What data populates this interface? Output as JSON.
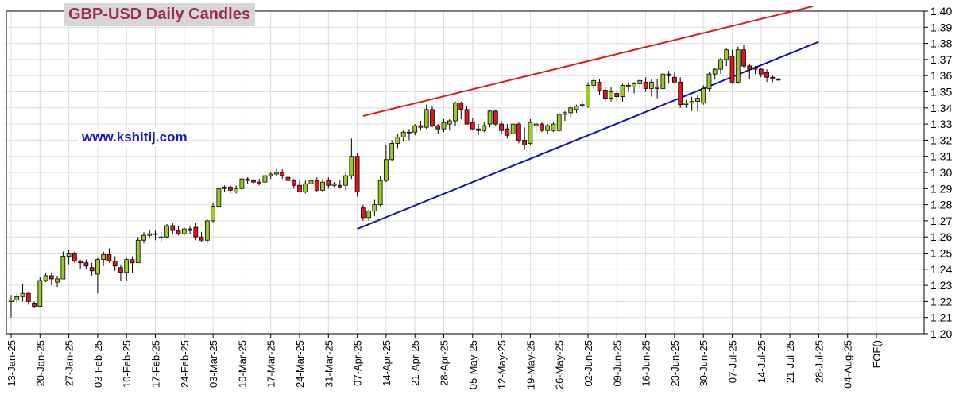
{
  "chart_data": {
    "type": "candlestick",
    "title": "GBP-USD Daily Candles",
    "watermark": "www.kshitij.com",
    "ylim": [
      1.2,
      1.4
    ],
    "y_ticks": [
      "1.20",
      "1.21",
      "1.22",
      "1.23",
      "1.24",
      "1.25",
      "1.26",
      "1.27",
      "1.28",
      "1.29",
      "1.30",
      "1.31",
      "1.32",
      "1.33",
      "1.34",
      "1.35",
      "1.36",
      "1.37",
      "1.38",
      "1.39",
      "1.40"
    ],
    "x_ticks": [
      "13-Jan-25",
      "20-Jan-25",
      "27-Jan-25",
      "03-Feb-25",
      "10-Feb-25",
      "17-Feb-25",
      "24-Feb-25",
      "03-Mar-25",
      "10-Mar-25",
      "17-Mar-25",
      "24-Mar-25",
      "31-Mar-25",
      "07-Apr-25",
      "14-Apr-25",
      "21-Apr-25",
      "28-Apr-25",
      "05-May-25",
      "12-May-25",
      "19-May-25",
      "26-May-25",
      "02-Jun-25",
      "09-Jun-25",
      "16-Jun-25",
      "23-Jun-25",
      "30-Jun-25",
      "07-Jul-25",
      "14-Jul-25",
      "21-Jul-25",
      "28-Jul-25",
      "04-Aug-25",
      "EOF()"
    ],
    "grid": true,
    "colors": {
      "up": "#99cc22",
      "down": "#e8141c",
      "resistance": "#e01818",
      "support": "#1212b8"
    },
    "candles": [
      [
        1.22,
        1.224,
        1.21,
        1.221
      ],
      [
        1.221,
        1.225,
        1.219,
        1.223
      ],
      [
        1.223,
        1.231,
        1.22,
        1.225
      ],
      [
        1.225,
        1.226,
        1.218,
        1.22
      ],
      [
        1.219,
        1.22,
        1.216,
        1.217
      ],
      [
        1.217,
        1.235,
        1.217,
        1.233
      ],
      [
        1.233,
        1.238,
        1.232,
        1.236
      ],
      [
        1.236,
        1.238,
        1.23,
        1.234
      ],
      [
        1.232,
        1.236,
        1.229,
        1.234
      ],
      [
        1.234,
        1.251,
        1.234,
        1.248
      ],
      [
        1.248,
        1.252,
        1.243,
        1.25
      ],
      [
        1.25,
        1.251,
        1.244,
        1.245
      ],
      [
        1.245,
        1.246,
        1.24,
        1.244
      ],
      [
        1.244,
        1.246,
        1.24,
        1.242
      ],
      [
        1.241,
        1.244,
        1.236,
        1.239
      ],
      [
        1.237,
        1.247,
        1.225,
        1.246
      ],
      [
        1.246,
        1.251,
        1.242,
        1.249
      ],
      [
        1.249,
        1.253,
        1.244,
        1.245
      ],
      [
        1.245,
        1.248,
        1.239,
        1.242
      ],
      [
        1.241,
        1.243,
        1.233,
        1.238
      ],
      [
        1.238,
        1.247,
        1.233,
        1.246
      ],
      [
        1.246,
        1.248,
        1.238,
        1.244
      ],
      [
        1.244,
        1.26,
        1.244,
        1.258
      ],
      [
        1.258,
        1.263,
        1.256,
        1.261
      ],
      [
        1.261,
        1.264,
        1.259,
        1.262
      ],
      [
        1.262,
        1.264,
        1.258,
        1.262
      ],
      [
        1.26,
        1.263,
        1.257,
        1.26
      ],
      [
        1.26,
        1.268,
        1.259,
        1.267
      ],
      [
        1.267,
        1.269,
        1.262,
        1.264
      ],
      [
        1.264,
        1.267,
        1.261,
        1.262
      ],
      [
        1.262,
        1.266,
        1.261,
        1.265
      ],
      [
        1.265,
        1.267,
        1.262,
        1.264
      ],
      [
        1.266,
        1.269,
        1.258,
        1.26
      ],
      [
        1.26,
        1.263,
        1.257,
        1.258
      ],
      [
        1.258,
        1.271,
        1.256,
        1.27
      ],
      [
        1.27,
        1.281,
        1.269,
        1.279
      ],
      [
        1.279,
        1.292,
        1.278,
        1.29
      ],
      [
        1.29,
        1.292,
        1.288,
        1.291
      ],
      [
        1.291,
        1.292,
        1.287,
        1.289
      ],
      [
        1.288,
        1.292,
        1.287,
        1.29
      ],
      [
        1.29,
        1.298,
        1.289,
        1.296
      ],
      [
        1.296,
        1.297,
        1.293,
        1.295
      ],
      [
        1.295,
        1.296,
        1.293,
        1.294
      ],
      [
        1.294,
        1.296,
        1.292,
        1.293
      ],
      [
        1.294,
        1.299,
        1.29,
        1.298
      ],
      [
        1.298,
        1.3,
        1.296,
        1.299
      ],
      [
        1.299,
        1.302,
        1.298,
        1.3
      ],
      [
        1.3,
        1.302,
        1.296,
        1.298
      ],
      [
        1.297,
        1.301,
        1.295,
        1.295
      ],
      [
        1.295,
        1.296,
        1.29,
        1.292
      ],
      [
        1.292,
        1.295,
        1.288,
        1.288
      ],
      [
        1.288,
        1.295,
        1.287,
        1.293
      ],
      [
        1.293,
        1.298,
        1.29,
        1.295
      ],
      [
        1.295,
        1.297,
        1.288,
        1.289
      ],
      [
        1.289,
        1.296,
        1.288,
        1.294
      ],
      [
        1.295,
        1.297,
        1.29,
        1.292
      ],
      [
        1.292,
        1.294,
        1.291,
        1.293
      ],
      [
        1.292,
        1.295,
        1.29,
        1.291
      ],
      [
        1.292,
        1.3,
        1.289,
        1.298
      ],
      [
        1.298,
        1.321,
        1.296,
        1.31
      ],
      [
        1.31,
        1.312,
        1.285,
        1.288
      ],
      [
        1.278,
        1.28,
        1.27,
        1.272
      ],
      [
        1.272,
        1.277,
        1.27,
        1.276
      ],
      [
        1.276,
        1.283,
        1.273,
        1.28
      ],
      [
        1.28,
        1.298,
        1.279,
        1.295
      ],
      [
        1.295,
        1.317,
        1.294,
        1.308
      ],
      [
        1.308,
        1.32,
        1.307,
        1.318
      ],
      [
        1.318,
        1.324,
        1.315,
        1.322
      ],
      [
        1.322,
        1.326,
        1.319,
        1.325
      ],
      [
        1.325,
        1.327,
        1.32,
        1.325
      ],
      [
        1.325,
        1.33,
        1.323,
        1.329
      ],
      [
        1.329,
        1.332,
        1.326,
        1.328
      ],
      [
        1.328,
        1.342,
        1.327,
        1.339
      ],
      [
        1.339,
        1.341,
        1.328,
        1.329
      ],
      [
        1.329,
        1.33,
        1.324,
        1.327
      ],
      [
        1.327,
        1.333,
        1.325,
        1.331
      ],
      [
        1.33,
        1.333,
        1.326,
        1.332
      ],
      [
        1.332,
        1.344,
        1.329,
        1.343
      ],
      [
        1.343,
        1.344,
        1.333,
        1.339
      ],
      [
        1.339,
        1.341,
        1.33,
        1.33
      ],
      [
        1.331,
        1.334,
        1.326,
        1.327
      ],
      [
        1.327,
        1.33,
        1.323,
        1.326
      ],
      [
        1.326,
        1.331,
        1.325,
        1.329
      ],
      [
        1.33,
        1.339,
        1.328,
        1.338
      ],
      [
        1.338,
        1.339,
        1.329,
        1.33
      ],
      [
        1.33,
        1.332,
        1.324,
        1.326
      ],
      [
        1.327,
        1.33,
        1.321,
        1.323
      ],
      [
        1.324,
        1.331,
        1.323,
        1.33
      ],
      [
        1.33,
        1.331,
        1.318,
        1.32
      ],
      [
        1.32,
        1.328,
        1.314,
        1.317
      ],
      [
        1.318,
        1.333,
        1.317,
        1.331
      ],
      [
        1.329,
        1.331,
        1.325,
        1.33
      ],
      [
        1.33,
        1.331,
        1.325,
        1.326
      ],
      [
        1.326,
        1.33,
        1.324,
        1.329
      ],
      [
        1.326,
        1.331,
        1.325,
        1.33
      ],
      [
        1.326,
        1.337,
        1.325,
        1.336
      ],
      [
        1.336,
        1.338,
        1.332,
        1.337
      ],
      [
        1.337,
        1.341,
        1.334,
        1.34
      ],
      [
        1.339,
        1.342,
        1.337,
        1.341
      ],
      [
        1.342,
        1.345,
        1.34,
        1.342
      ],
      [
        1.341,
        1.356,
        1.34,
        1.354
      ],
      [
        1.354,
        1.359,
        1.352,
        1.357
      ],
      [
        1.356,
        1.358,
        1.348,
        1.351
      ],
      [
        1.351,
        1.353,
        1.344,
        1.346
      ],
      [
        1.346,
        1.353,
        1.344,
        1.35
      ],
      [
        1.349,
        1.351,
        1.344,
        1.347
      ],
      [
        1.347,
        1.355,
        1.344,
        1.354
      ],
      [
        1.354,
        1.356,
        1.35,
        1.353
      ],
      [
        1.353,
        1.356,
        1.349,
        1.355
      ],
      [
        1.355,
        1.358,
        1.352,
        1.357
      ],
      [
        1.356,
        1.359,
        1.35,
        1.352
      ],
      [
        1.352,
        1.358,
        1.347,
        1.356
      ],
      [
        1.353,
        1.358,
        1.346,
        1.352
      ],
      [
        1.352,
        1.363,
        1.351,
        1.361
      ],
      [
        1.361,
        1.363,
        1.355,
        1.36
      ],
      [
        1.359,
        1.362,
        1.356,
        1.356
      ],
      [
        1.356,
        1.359,
        1.34,
        1.342
      ],
      [
        1.342,
        1.345,
        1.34,
        1.343
      ],
      [
        1.343,
        1.347,
        1.338,
        1.344
      ],
      [
        1.344,
        1.348,
        1.338,
        1.346
      ],
      [
        1.343,
        1.354,
        1.342,
        1.352
      ],
      [
        1.352,
        1.362,
        1.35,
        1.361
      ],
      [
        1.361,
        1.365,
        1.358,
        1.364
      ],
      [
        1.364,
        1.371,
        1.361,
        1.37
      ],
      [
        1.37,
        1.377,
        1.366,
        1.376
      ],
      [
        1.372,
        1.376,
        1.355,
        1.356
      ],
      [
        1.356,
        1.378,
        1.355,
        1.376
      ],
      [
        1.376,
        1.379,
        1.365,
        1.366
      ],
      [
        1.366,
        1.367,
        1.358,
        1.364
      ],
      [
        1.365,
        1.366,
        1.361,
        1.364
      ],
      [
        1.364,
        1.365,
        1.359,
        1.361
      ],
      [
        1.362,
        1.364,
        1.356,
        1.359
      ],
      [
        1.359,
        1.36,
        1.356,
        1.358
      ],
      [
        1.3575,
        1.3585,
        1.357,
        1.3577
      ]
    ],
    "trendlines": [
      {
        "name": "resistance",
        "from": [
          1.335,
          61
        ],
        "to": [
          1.403,
          139
        ]
      },
      {
        "name": "support",
        "from": [
          1.265,
          60
        ],
        "to": [
          1.381,
          140
        ]
      }
    ]
  }
}
